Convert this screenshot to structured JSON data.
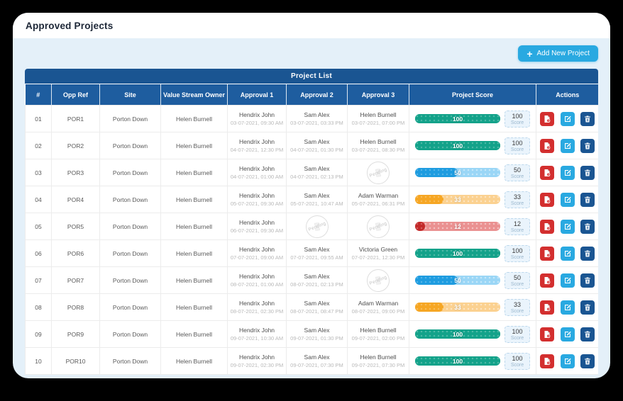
{
  "page": {
    "title": "Approved Projects"
  },
  "toolbar": {
    "add_button_label": "Add New Project",
    "plus_icon": "+"
  },
  "table": {
    "title": "Project List",
    "columns": [
      "#",
      "Opp Ref",
      "Site",
      "Value Stream Owner",
      "Approval 1",
      "Approval 2",
      "Approval 3",
      "Project Score",
      "Actions"
    ],
    "pending_label": "Pending",
    "score_unit_label": "Score",
    "rows": [
      {
        "num": "01",
        "opp_ref": "POR1",
        "site": "Porton Down",
        "owner": "Helen Burnell",
        "approval1": {
          "name": "Hendrix John",
          "datetime": "03-07-2021, 09:30 AM"
        },
        "approval2": {
          "name": "Sam Alex",
          "datetime": "03-07-2021, 03:33 PM"
        },
        "approval3": {
          "name": "Helen Burnell",
          "datetime": "03-07-2021, 07:00 PM"
        },
        "score": 100,
        "score_color": "teal"
      },
      {
        "num": "02",
        "opp_ref": "POR2",
        "site": "Porton Down",
        "owner": "Helen Burnell",
        "approval1": {
          "name": "Hendrix John",
          "datetime": "04-07-2021, 12:30 PM"
        },
        "approval2": {
          "name": "Sam Alex",
          "datetime": "04-07-2021, 01:30 PM"
        },
        "approval3": {
          "name": "Helen Burnell",
          "datetime": "03-07-2021, 08:30 PM"
        },
        "score": 100,
        "score_color": "teal"
      },
      {
        "num": "03",
        "opp_ref": "POR3",
        "site": "Porton Down",
        "owner": "Helen Burnell",
        "approval1": {
          "name": "Hendrix John",
          "datetime": "04-07-2021, 01:00 AM"
        },
        "approval2": {
          "name": "Sam Alex",
          "datetime": "04-07-2021, 02:13 PM"
        },
        "approval3": {
          "pending": true
        },
        "score": 50,
        "score_color": "blue"
      },
      {
        "num": "04",
        "opp_ref": "POR4",
        "site": "Porton Down",
        "owner": "Helen Burnell",
        "approval1": {
          "name": "Hendrix John",
          "datetime": "05-07-2021, 09:30 AM"
        },
        "approval2": {
          "name": "Sam Alex",
          "datetime": "05-07-2021, 10:47 AM"
        },
        "approval3": {
          "name": "Adam Warman",
          "datetime": "05-07-2021, 06:31 PM"
        },
        "score": 33,
        "score_color": "orange"
      },
      {
        "num": "05",
        "opp_ref": "POR5",
        "site": "Porton Down",
        "owner": "Helen Burnell",
        "approval1": {
          "name": "Hendrix John",
          "datetime": "06-07-2021, 09:30 AM"
        },
        "approval2": {
          "pending": true
        },
        "approval3": {
          "pending": true
        },
        "score": 12,
        "score_color": "red"
      },
      {
        "num": "06",
        "opp_ref": "POR6",
        "site": "Porton Down",
        "owner": "Helen Burnell",
        "approval1": {
          "name": "Hendrix John",
          "datetime": "07-07-2021, 09:00 AM"
        },
        "approval2": {
          "name": "Sam Alex",
          "datetime": "07-07-2021, 09:55 AM"
        },
        "approval3": {
          "name": "Victoria Green",
          "datetime": "07-07-2021, 12:30 PM"
        },
        "score": 100,
        "score_color": "teal"
      },
      {
        "num": "07",
        "opp_ref": "POR7",
        "site": "Porton Down",
        "owner": "Helen Burnell",
        "approval1": {
          "name": "Hendrix John",
          "datetime": "08-07-2021, 01:00 AM"
        },
        "approval2": {
          "name": "Sam Alex",
          "datetime": "08-07-2021, 02:13 PM"
        },
        "approval3": {
          "pending": true
        },
        "score": 50,
        "score_color": "blue"
      },
      {
        "num": "08",
        "opp_ref": "POR8",
        "site": "Porton Down",
        "owner": "Helen Burnell",
        "approval1": {
          "name": "Hendrix John",
          "datetime": "08-07-2021, 02:30 PM"
        },
        "approval2": {
          "name": "Sam Alex",
          "datetime": "08-07-2021, 08:47 PM"
        },
        "approval3": {
          "name": "Adam Warman",
          "datetime": "08-07-2021, 09:00 PM"
        },
        "score": 33,
        "score_color": "orange"
      },
      {
        "num": "09",
        "opp_ref": "POR9",
        "site": "Porton Down",
        "owner": "Helen Burnell",
        "approval1": {
          "name": "Hendrix John",
          "datetime": "09-07-2021, 10:30 AM"
        },
        "approval2": {
          "name": "Sam Alex",
          "datetime": "09-07-2021, 01:30 PM"
        },
        "approval3": {
          "name": "Helen Burnell",
          "datetime": "09-07-2021, 02:00 PM"
        },
        "score": 100,
        "score_color": "teal"
      },
      {
        "num": "10",
        "opp_ref": "POR10",
        "site": "Porton Down",
        "owner": "Helen Burnell",
        "approval1": {
          "name": "Hendrix John",
          "datetime": "09-07-2021, 02:30 PM"
        },
        "approval2": {
          "name": "Sam Alex",
          "datetime": "09-07-2021, 07:30 PM"
        },
        "approval3": {
          "name": "Helen Burnell",
          "datetime": "09-07-2021, 07:30 PM"
        },
        "score": 100,
        "score_color": "teal"
      }
    ]
  },
  "score_colors": {
    "teal": {
      "fill": "#13a28a",
      "track": "#13a28a"
    },
    "blue": {
      "fill": "#1e9ce0",
      "track": "#9ad6f6"
    },
    "orange": {
      "fill": "#f6a623",
      "track": "#fbd190"
    },
    "red": {
      "fill": "#c32a2a",
      "track": "#ea9191"
    }
  },
  "colors": {
    "accent_blue": "#29a9e1",
    "header_band_blue": "#1a5592",
    "header_cell_blue": "#1e5d9f",
    "content_bg": "#e4f0f9",
    "delete_action_red": "#d32f2f",
    "outer_bg": "#000000"
  }
}
